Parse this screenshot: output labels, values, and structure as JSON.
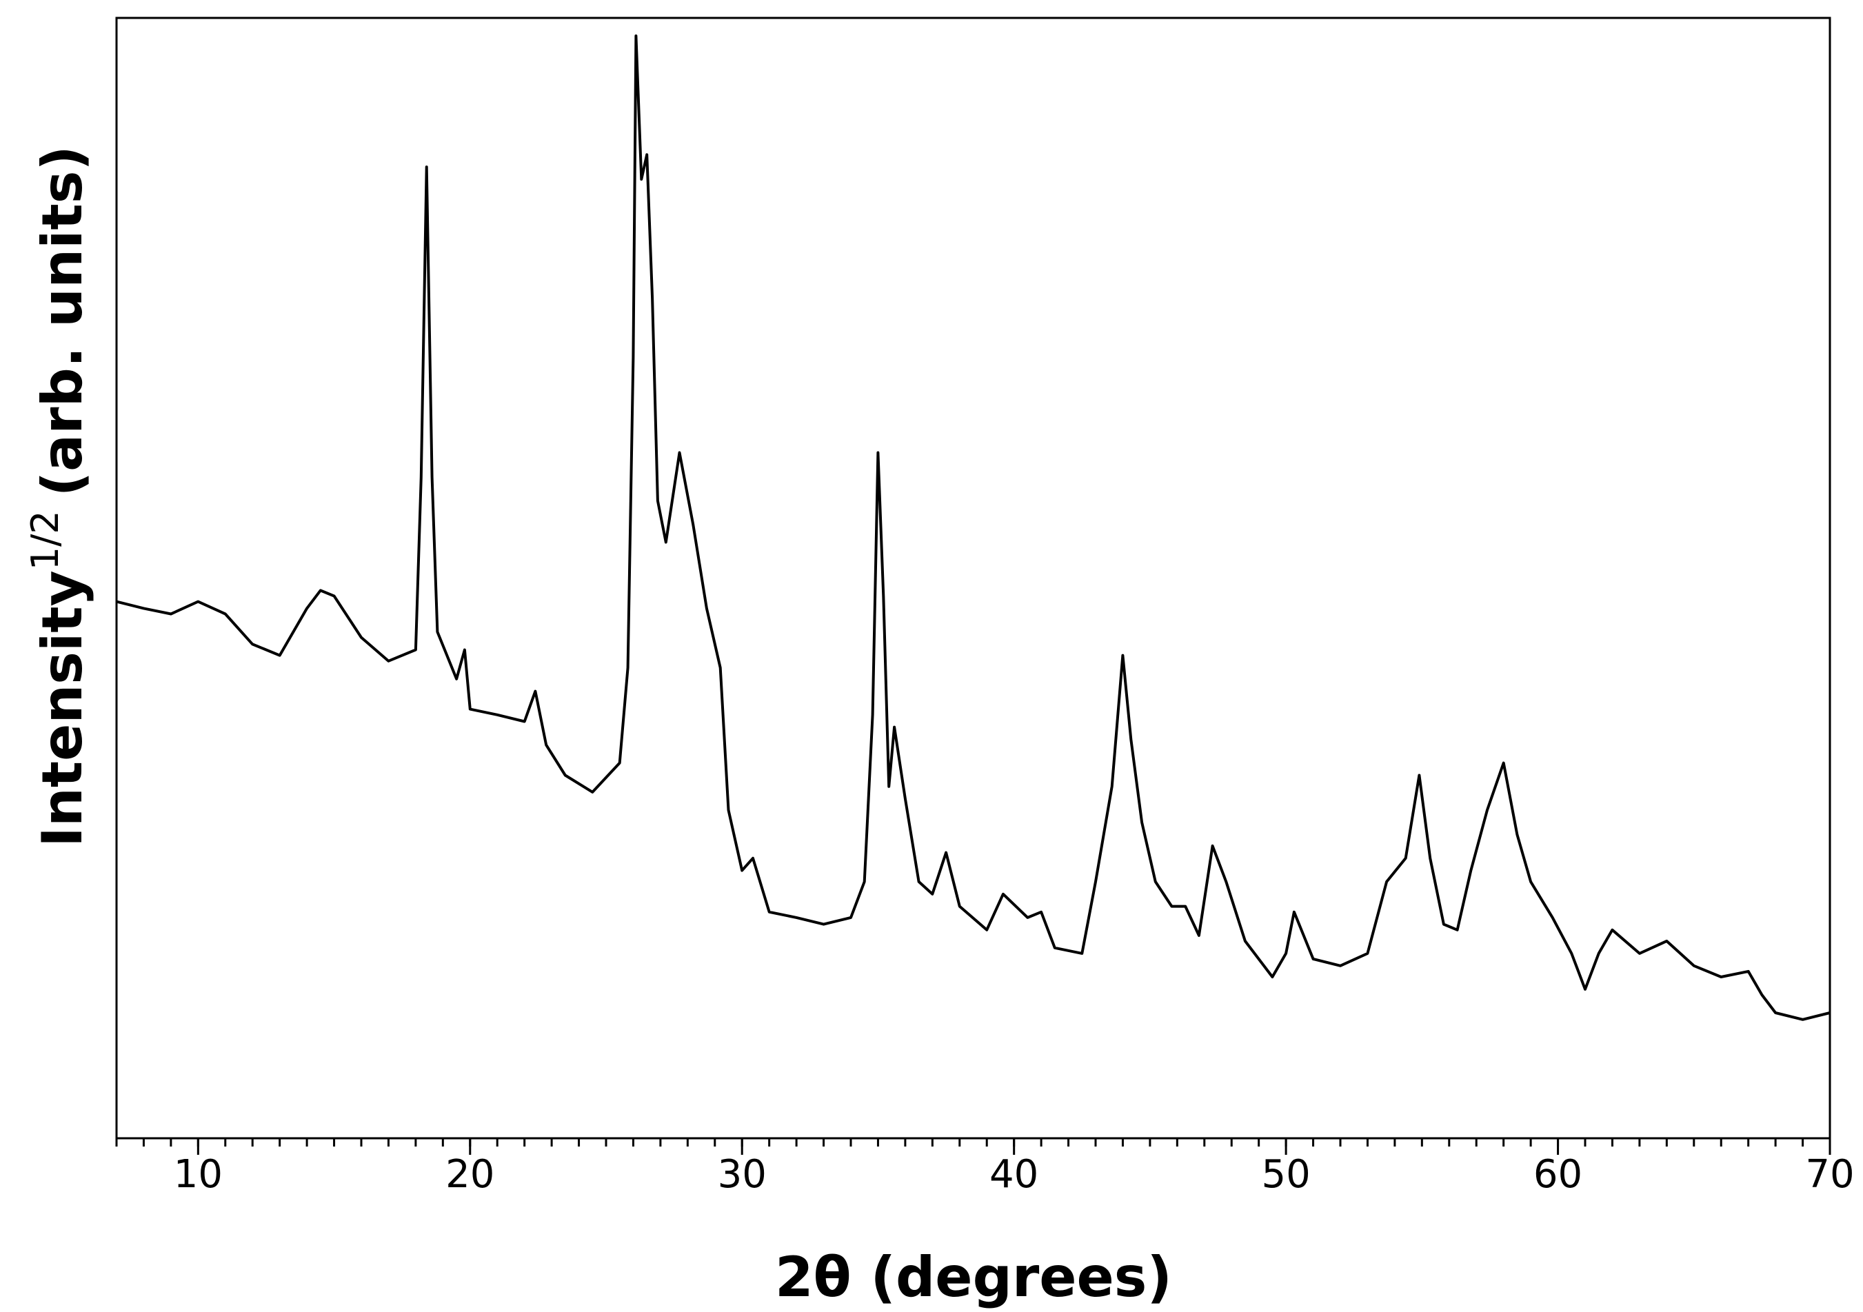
{
  "chart_data": {
    "type": "line",
    "xlabel": "2θ (degrees)",
    "ylabel": {
      "text": "Intensity",
      "superscript": "1/2",
      "suffix": "(arb. units)"
    },
    "color": "#000000",
    "xlim": [
      7,
      70
    ],
    "xticks": [
      10,
      20,
      30,
      40,
      50,
      60,
      70
    ],
    "xminorticks": [
      7,
      8,
      9,
      10,
      11,
      12,
      13,
      14,
      15,
      16,
      17,
      18,
      19,
      20,
      21,
      22,
      23,
      24,
      25,
      26,
      27,
      28,
      29,
      30,
      31,
      32,
      33,
      34,
      35,
      36,
      37,
      38,
      39,
      40,
      41,
      42,
      43,
      44,
      45,
      46,
      47,
      48,
      49,
      50,
      51,
      52,
      53,
      54,
      55,
      56,
      57,
      58,
      59,
      60,
      61,
      62,
      63,
      64,
      65,
      66,
      67,
      68,
      69,
      70
    ],
    "ylim": [
      0,
      100
    ],
    "x": [
      7,
      8,
      9,
      10,
      11,
      12,
      13,
      14,
      14.5,
      15,
      16,
      17,
      18,
      18.2,
      18.4,
      18.6,
      18.8,
      19.5,
      19.8,
      20,
      21,
      22,
      22.4,
      22.8,
      23.5,
      24.5,
      25.5,
      25.8,
      26,
      26.1,
      26.3,
      26.5,
      26.7,
      26.9,
      27.2,
      27.7,
      28.2,
      28.7,
      29.2,
      29.5,
      30,
      30.4,
      31,
      32,
      33,
      34,
      34.5,
      34.8,
      35,
      35.2,
      35.4,
      35.6,
      36,
      36.5,
      37,
      37.5,
      38,
      39,
      39.6,
      40.5,
      41,
      41.5,
      42.5,
      43,
      43.6,
      44,
      44.3,
      44.7,
      45.2,
      45.8,
      46.3,
      46.8,
      47.3,
      47.8,
      48.5,
      49.5,
      50,
      50.3,
      51,
      52,
      53,
      53.7,
      54.4,
      54.9,
      55.3,
      55.8,
      56.3,
      56.8,
      57.4,
      58,
      58.5,
      59,
      59.8,
      60.5,
      61,
      61.5,
      62,
      63,
      64,
      65,
      66,
      67,
      67.5,
      68,
      69,
      70
    ],
    "values": [
      47.9,
      47.3,
      46.8,
      47.9,
      46.8,
      44.1,
      43.1,
      47.3,
      48.9,
      48.4,
      44.7,
      42.6,
      43.6,
      59.0,
      86.7,
      59.0,
      45.2,
      41.0,
      43.6,
      38.3,
      37.8,
      37.2,
      39.9,
      35.1,
      32.4,
      30.9,
      33.5,
      42.0,
      69.7,
      98.4,
      85.6,
      87.8,
      75.0,
      56.9,
      53.2,
      61.2,
      54.8,
      47.3,
      42.0,
      29.3,
      23.9,
      25.0,
      20.2,
      19.7,
      19.1,
      19.7,
      22.9,
      37.8,
      61.2,
      48.4,
      31.4,
      36.7,
      30.3,
      22.9,
      21.8,
      25.5,
      20.7,
      18.6,
      21.8,
      19.7,
      20.2,
      17.0,
      16.5,
      22.9,
      31.4,
      43.1,
      35.6,
      28.2,
      22.9,
      20.7,
      20.7,
      18.1,
      26.1,
      22.9,
      17.6,
      14.4,
      16.5,
      20.2,
      16.0,
      15.4,
      16.5,
      22.9,
      25.0,
      32.4,
      25.0,
      19.1,
      18.6,
      23.9,
      29.3,
      33.5,
      27.1,
      22.9,
      19.7,
      16.5,
      13.3,
      16.5,
      18.6,
      16.5,
      17.6,
      15.4,
      14.4,
      14.9,
      12.8,
      11.2,
      10.6,
      11.2
    ]
  }
}
